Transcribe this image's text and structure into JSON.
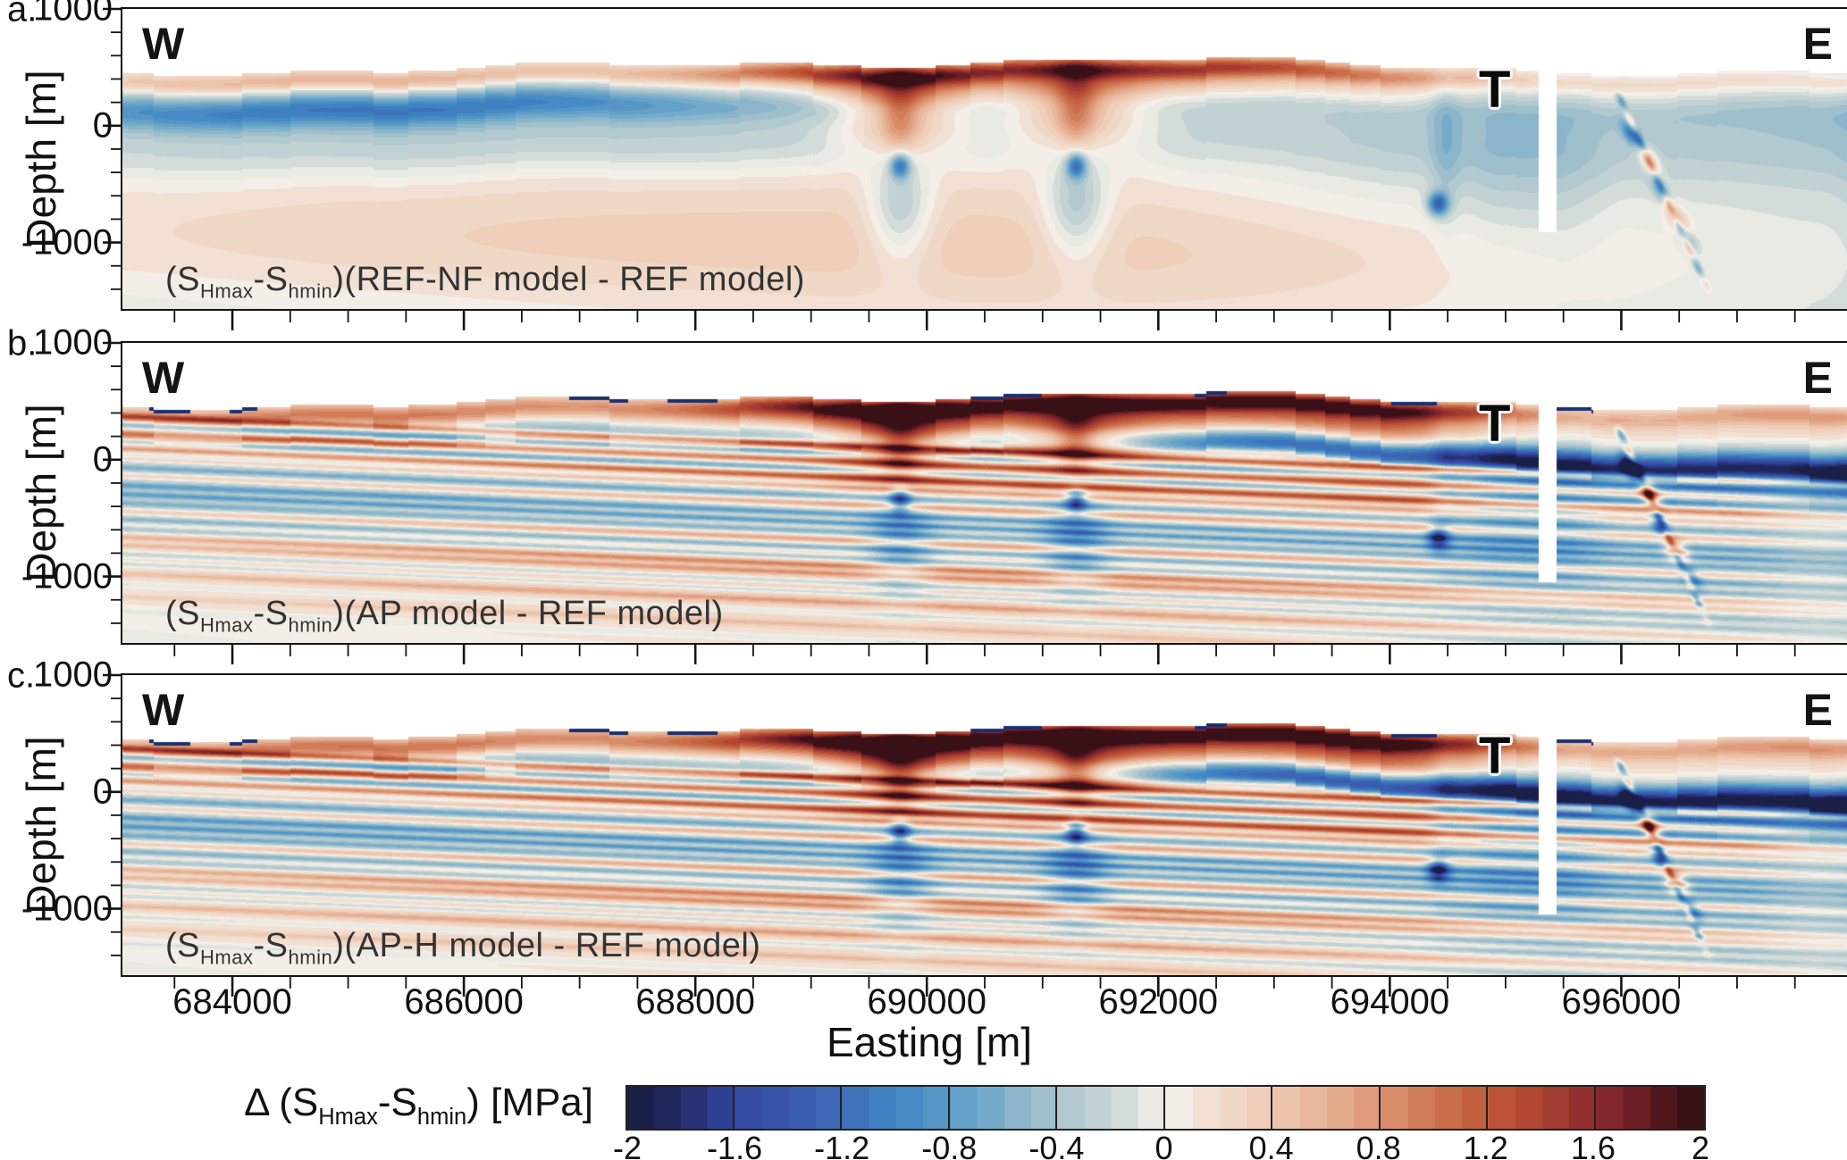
{
  "chart_data": {
    "type": "heatmap",
    "subtype": "contoured geomechanical cross-sections (difference of differential stress)",
    "orientation": {
      "west_label": "W",
      "east_label": "E"
    },
    "x_axis": {
      "label": "Easting [m]",
      "range": [
        683050,
        697950
      ],
      "major_ticks": [
        684000,
        686000,
        688000,
        690000,
        692000,
        694000,
        696000
      ],
      "minor_tick_step": 500
    },
    "y_axis": {
      "label": "Depth [m]",
      "range": [
        1000,
        -1569
      ],
      "major_ticks": [
        1000,
        0,
        -1000
      ],
      "minor_tick_step": 200
    },
    "annotation_template": {
      "open": "(S",
      "smax": "Hmax",
      "mid": "-S",
      "smin": "hmin"
    },
    "panels": [
      {
        "letter": "a.",
        "quantity": "(SHmax-Shmin)",
        "comparison": "REF-NF model - REF model",
        "annotation_model": ")(REF-NF model - REF model)",
        "tunnel_label": "T",
        "render": {
          "broad": 1,
          "subsurfBlue": 1,
          "navyLine": 0,
          "capScale": 0.8,
          "redMidEast": 0.45,
          "blueWash": 0.5,
          "aBlobs": 1,
          "streaks": 0,
          "plumes": 0.85,
          "faultRed": 1.0,
          "diag": 0.8,
          "diagBlobs": 0.5,
          "dashes": 0,
          "tun": 250
        }
      },
      {
        "letter": "b.",
        "quantity": "(SHmax-Shmin)",
        "comparison": "AP model - REF model",
        "annotation_model": ")(AP model - REF model)",
        "tunnel_label": "T",
        "render": {
          "broad": 0.4,
          "subsurfBlue": 0.25,
          "navyLine": 1,
          "capScale": 1.05,
          "redMidEast": 1,
          "blueWash": 1,
          "aBlobs": 0.25,
          "streaks": 1,
          "plumes": 0.95,
          "faultRed": 1.05,
          "diag": 1.2,
          "diagBlobs": 1.1,
          "dashes": 1,
          "tun": 268
        }
      },
      {
        "letter": "c.",
        "quantity": "(SHmax-Shmin)",
        "comparison": "AP-H model - REF model",
        "annotation_model": ")(AP-H model - REF model)",
        "tunnel_label": "T",
        "render": {
          "broad": 0.4,
          "subsurfBlue": 0.25,
          "navyLine": 1.1,
          "capScale": 1.1,
          "redMidEast": 1.05,
          "blueWash": 1,
          "aBlobs": 0.25,
          "streaks": 1.06,
          "plumes": 1.0,
          "faultRed": 1.1,
          "diag": 1.25,
          "diagBlobs": 1.15,
          "dashes": 1,
          "tun": 268
        }
      }
    ],
    "features": {
      "vertical_fault_eastings": [
        689770,
        691290,
        694480
      ],
      "tunnel_easting_range": [
        695290,
        695440
      ],
      "inclined_fault_top_easting": 695870
    },
    "colorbar": {
      "label": "Δ (SHmax-Shmin) [MPa]",
      "label_open": "Δ (S",
      "label_smax": "Hmax",
      "label_mid": "-S",
      "label_smin": "hmin",
      "label_close": ") [MPa]",
      "range": [
        -2,
        2
      ],
      "segment_step": 0.1,
      "ticks": [
        "-2",
        "-1.6",
        "-1.2",
        "-0.8",
        "-0.4",
        "0",
        "0.4",
        "0.8",
        "1.2",
        "1.6",
        "2"
      ],
      "palette_stops": [
        [
          -2.0,
          "#151b3d"
        ],
        [
          -1.8,
          "#232a66"
        ],
        [
          -1.6,
          "#31479f"
        ],
        [
          -1.3,
          "#3c60b2"
        ],
        [
          -1.0,
          "#3f86c4"
        ],
        [
          -0.7,
          "#6ba6c9"
        ],
        [
          -0.4,
          "#a9c4cd"
        ],
        [
          -0.15,
          "#d3dcd8"
        ],
        [
          -0.04,
          "#ecebe5"
        ],
        [
          0.04,
          "#f3efe9"
        ],
        [
          0.15,
          "#f2e0d4"
        ],
        [
          0.4,
          "#eecbb4"
        ],
        [
          0.7,
          "#e2a384"
        ],
        [
          1.0,
          "#cd7450"
        ],
        [
          1.3,
          "#b84c31"
        ],
        [
          1.6,
          "#8c2a2e"
        ],
        [
          1.8,
          "#5f1a20"
        ],
        [
          2.0,
          "#2c0d12"
        ]
      ]
    }
  }
}
